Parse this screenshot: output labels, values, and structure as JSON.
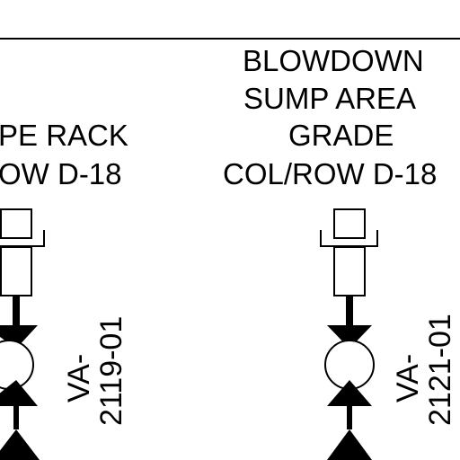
{
  "left_location": {
    "line1": "PE RACK",
    "line2": "OW D-18"
  },
  "right_location": {
    "line1": "BLOWDOWN",
    "line2": "SUMP AREA",
    "line3": "GRADE",
    "line4": "COL/ROW D-18"
  },
  "left_valve": {
    "tag_prefix": "VA-",
    "tag_number": "2119-01"
  },
  "right_valve": {
    "tag_prefix": "VA-",
    "tag_number": "2121-01"
  }
}
